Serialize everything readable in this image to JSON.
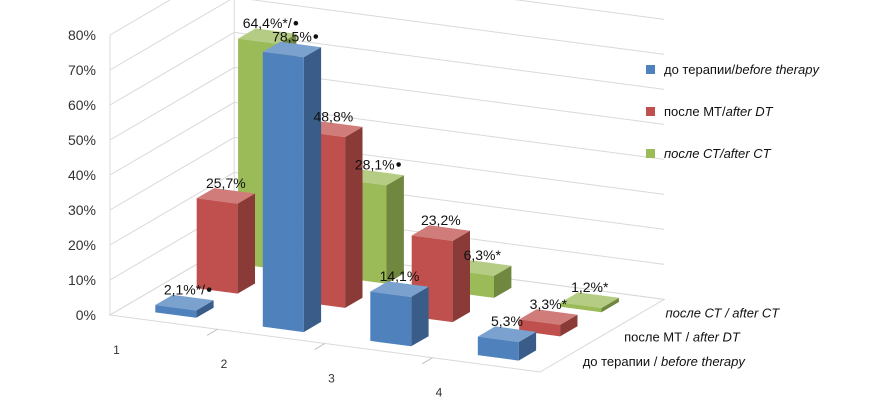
{
  "chart_data": {
    "type": "bar",
    "subtype": "3d-clustered-column",
    "categories": [
      "1",
      "2",
      "3",
      "4"
    ],
    "y_ticks": [
      "0%",
      "10%",
      "20%",
      "30%",
      "40%",
      "50%",
      "60%",
      "70%",
      "80%"
    ],
    "ylim": [
      0,
      80
    ],
    "grid": true,
    "legend_position": "right",
    "series": [
      {
        "name_plain": "до терапии/",
        "name_italic": "before therapy",
        "depth_plain": "до терапии / ",
        "depth_italic": "before therapy",
        "color": "#4F81BD",
        "values": [
          2.1,
          78.5,
          14.1,
          5.3
        ],
        "labels": [
          "2,1%*/",
          "78,5%",
          "14,1%",
          "5,3%"
        ],
        "bullets": [
          true,
          true,
          false,
          false
        ]
      },
      {
        "name_plain": "после МТ/",
        "name_italic": "after DT",
        "depth_plain": "после МТ / ",
        "depth_italic": "after DT",
        "color": "#C0504D",
        "values": [
          25.7,
          48.8,
          23.2,
          3.3
        ],
        "labels": [
          "25,7%",
          "48,8%",
          "23,2%",
          "3,3%*"
        ],
        "bullets": [
          false,
          false,
          false,
          false
        ]
      },
      {
        "name_plain": "",
        "name_italic": "после СТ/after CT",
        "depth_plain": "",
        "depth_italic": "после СТ / after CT",
        "color": "#9BBB59",
        "values": [
          64.4,
          28.1,
          6.3,
          1.2
        ],
        "labels": [
          "64,4%*/",
          "28,1%",
          "6,3%*",
          "1,2%*"
        ],
        "bullets": [
          true,
          true,
          false,
          false
        ]
      }
    ]
  }
}
